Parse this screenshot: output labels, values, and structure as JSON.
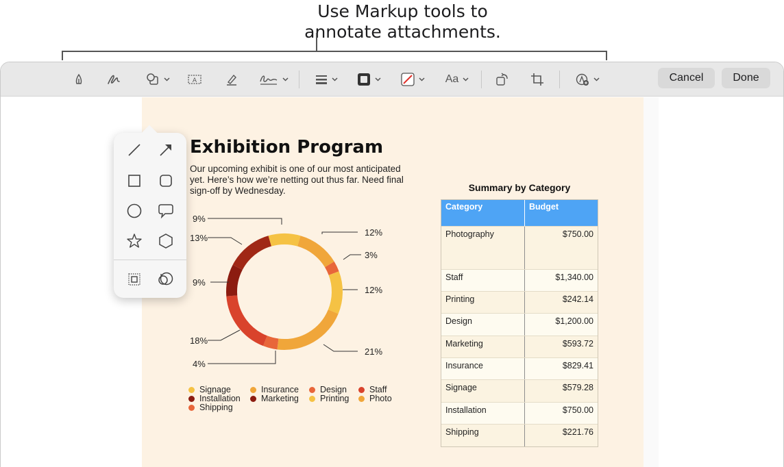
{
  "callout": {
    "line1": "Use Markup tools to",
    "line2": "annotate attachments."
  },
  "toolbar": {
    "tools": [
      "sketch-tool",
      "draw-tool",
      "shapes-tool",
      "text-tool",
      "highlight-tool",
      "sign-tool",
      "shape-style-tool",
      "border-color-tool",
      "fill-color-tool",
      "text-style-tool",
      "rotate-tool",
      "crop-tool",
      "annotate-tool"
    ],
    "text_style_label": "Aa",
    "cancel_label": "Cancel",
    "done_label": "Done"
  },
  "shapes_popover": {
    "shapes": [
      "line-icon",
      "arrow-icon",
      "square-icon",
      "rounded-square-icon",
      "circle-icon",
      "speech-bubble-icon",
      "star-icon",
      "hexagon-icon",
      "mask-icon",
      "loupe-icon"
    ]
  },
  "document": {
    "title": "Exhibition Program",
    "body_lines": [
      "Our upcoming exhibit is one of our most anticipated",
      "yet. Here’s how we’re netting out thus far. Need final",
      "sign-off by Wednesday."
    ]
  },
  "chart_data": {
    "type": "pie",
    "style": "donut",
    "slices": [
      {
        "label": "Printing",
        "value": 9,
        "color": "#f5c244"
      },
      {
        "label": "Photo",
        "value": 12,
        "color": "#f0a63a"
      },
      {
        "label": "Design",
        "value": 3,
        "color": "#e8663a"
      },
      {
        "label": "Printing",
        "value": 12,
        "color": "#f5c244"
      },
      {
        "label": "Photo",
        "value": 21,
        "color": "#f0a63a"
      },
      {
        "label": "Design",
        "value": 4,
        "color": "#e8663a"
      },
      {
        "label": "Staff",
        "value": 18,
        "color": "#d9432c"
      },
      {
        "label": "Marketing",
        "value": 9,
        "color": "#8c1c10"
      },
      {
        "label": "Installation",
        "value": 13,
        "color": "#a02816"
      }
    ],
    "percent_labels": [
      "9%",
      "12%",
      "3%",
      "12%",
      "21%",
      "4%",
      "18%",
      "9%",
      "13%"
    ],
    "legend": [
      {
        "label": "Signage",
        "color": "#f5c244"
      },
      {
        "label": "Insurance",
        "color": "#f0a63a"
      },
      {
        "label": "Design",
        "color": "#e8663a"
      },
      {
        "label": "Staff",
        "color": "#d9432c"
      },
      {
        "label": "Installation",
        "color": "#8c1c10"
      },
      {
        "label": "Marketing",
        "color": "#8c1c10"
      },
      {
        "label": "Printing",
        "color": "#f5c244"
      },
      {
        "label": "Photo",
        "color": "#f0a63a"
      },
      {
        "label": "Shipping",
        "color": "#e8663a"
      }
    ]
  },
  "table": {
    "title": "Summary by Category",
    "headers": [
      "Category",
      "Budget"
    ],
    "rows": [
      [
        "Photography",
        "$750.00"
      ],
      [
        "Staff",
        "$1,340.00"
      ],
      [
        "Printing",
        "$242.14"
      ],
      [
        "Design",
        "$1,200.00"
      ],
      [
        "Marketing",
        "$593.72"
      ],
      [
        "Insurance",
        "$829.41"
      ],
      [
        "Signage",
        "$579.28"
      ],
      [
        "Installation",
        "$750.00"
      ],
      [
        "Shipping",
        "$221.76"
      ]
    ]
  }
}
